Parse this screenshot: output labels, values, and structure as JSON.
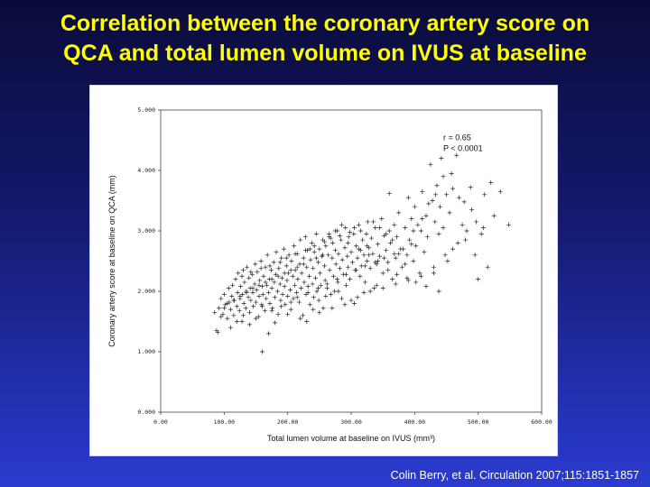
{
  "slide": {
    "title_line1": "Correlation between the coronary artery score on",
    "title_line2": "QCA and total lumen volume on IVUS at baseline",
    "citation": "Colin Berry, et al. Circulation 2007;115:1851-1857",
    "title_color": "#ffff00"
  },
  "chart_data": {
    "type": "scatter",
    "xlabel": "Total lumen volume at baseline on IVUS (mm³)",
    "ylabel": "Coronary artery score at baseline on QCA (mm)",
    "xlim": [
      0,
      600
    ],
    "ylim": [
      0,
      5
    ],
    "x_ticks": [
      "0.00",
      "100.00",
      "200.00",
      "300.00",
      "400.00",
      "500.00",
      "600.00"
    ],
    "y_ticks": [
      "0.000",
      "1.000",
      "2.000",
      "3.000",
      "4.000",
      "5.000"
    ],
    "annotations": [
      "r = 0.65",
      "P < 0.0001"
    ],
    "marker": "+",
    "grid": false,
    "points": [
      [
        85,
        1.65
      ],
      [
        88,
        1.35
      ],
      [
        92,
        1.72
      ],
      [
        95,
        1.88
      ],
      [
        98,
        1.62
      ],
      [
        100,
        1.95
      ],
      [
        102,
        1.78
      ],
      [
        105,
        1.55
      ],
      [
        107,
        2.05
      ],
      [
        108,
        1.82
      ],
      [
        110,
        1.7
      ],
      [
        112,
        1.92
      ],
      [
        113,
        2.1
      ],
      [
        115,
        1.6
      ],
      [
        116,
        1.85
      ],
      [
        118,
        2.2
      ],
      [
        120,
        1.75
      ],
      [
        121,
        1.98
      ],
      [
        122,
        2.3
      ],
      [
        124,
        1.68
      ],
      [
        125,
        1.88
      ],
      [
        126,
        2.08
      ],
      [
        128,
        1.5
      ],
      [
        129,
        1.95
      ],
      [
        130,
        2.35
      ],
      [
        131,
        1.8
      ],
      [
        132,
        2.15
      ],
      [
        134,
        1.72
      ],
      [
        135,
        2.0
      ],
      [
        136,
        2.4
      ],
      [
        138,
        1.9
      ],
      [
        139,
        2.22
      ],
      [
        140,
        1.65
      ],
      [
        141,
        2.05
      ],
      [
        142,
        1.85
      ],
      [
        144,
        2.28
      ],
      [
        145,
        1.98
      ],
      [
        146,
        1.75
      ],
      [
        148,
        2.12
      ],
      [
        149,
        2.45
      ],
      [
        150,
        1.82
      ],
      [
        151,
        2.02
      ],
      [
        152,
        2.32
      ],
      [
        154,
        1.58
      ],
      [
        155,
        1.92
      ],
      [
        156,
        2.18
      ],
      [
        158,
        2.5
      ],
      [
        159,
        1.78
      ],
      [
        160,
        2.08
      ],
      [
        161,
        1.95
      ],
      [
        162,
        2.25
      ],
      [
        164,
        1.68
      ],
      [
        165,
        2.4
      ],
      [
        166,
        1.88
      ],
      [
        167,
        2.1
      ],
      [
        168,
        2.6
      ],
      [
        170,
        1.98
      ],
      [
        171,
        2.2
      ],
      [
        172,
        1.8
      ],
      [
        174,
        2.35
      ],
      [
        175,
        2.05
      ],
      [
        176,
        1.72
      ],
      [
        178,
        2.48
      ],
      [
        179,
        2.15
      ],
      [
        180,
        1.9
      ],
      [
        181,
        2.28
      ],
      [
        182,
        2.65
      ],
      [
        184,
        2.0
      ],
      [
        185,
        1.62
      ],
      [
        186,
        2.38
      ],
      [
        188,
        2.12
      ],
      [
        189,
        1.85
      ],
      [
        190,
        2.55
      ],
      [
        191,
        2.22
      ],
      [
        192,
        1.95
      ],
      [
        194,
        2.7
      ],
      [
        195,
        2.08
      ],
      [
        196,
        1.78
      ],
      [
        198,
        2.42
      ],
      [
        199,
        2.18
      ],
      [
        200,
        1.92
      ],
      [
        201,
        2.3
      ],
      [
        202,
        2.6
      ],
      [
        204,
        2.02
      ],
      [
        205,
        1.7
      ],
      [
        206,
        2.5
      ],
      [
        208,
        2.25
      ],
      [
        209,
        1.88
      ],
      [
        210,
        2.75
      ],
      [
        211,
        2.1
      ],
      [
        212,
        2.35
      ],
      [
        214,
        1.98
      ],
      [
        215,
        2.62
      ],
      [
        216,
        2.2
      ],
      [
        218,
        1.82
      ],
      [
        219,
        2.45
      ],
      [
        220,
        2.85
      ],
      [
        221,
        2.05
      ],
      [
        222,
        2.3
      ],
      [
        224,
        1.6
      ],
      [
        225,
        2.55
      ],
      [
        226,
        2.15
      ],
      [
        228,
        2.9
      ],
      [
        229,
        1.95
      ],
      [
        230,
        2.4
      ],
      [
        231,
        2.68
      ],
      [
        232,
        2.08
      ],
      [
        234,
        2.25
      ],
      [
        235,
        1.78
      ],
      [
        236,
        2.52
      ],
      [
        238,
        2.8
      ],
      [
        239,
        2.12
      ],
      [
        240,
        2.38
      ],
      [
        241,
        1.9
      ],
      [
        242,
        2.65
      ],
      [
        244,
        2.22
      ],
      [
        245,
        2.95
      ],
      [
        246,
        2.0
      ],
      [
        248,
        2.48
      ],
      [
        249,
        1.85
      ],
      [
        250,
        2.7
      ],
      [
        251,
        2.3
      ],
      [
        252,
        2.1
      ],
      [
        254,
        2.58
      ],
      [
        255,
        2.85
      ],
      [
        256,
        1.72
      ],
      [
        258,
        2.42
      ],
      [
        259,
        2.18
      ],
      [
        260,
        2.75
      ],
      [
        262,
        2.05
      ],
      [
        264,
        2.6
      ],
      [
        265,
        2.9
      ],
      [
        266,
        2.35
      ],
      [
        268,
        1.95
      ],
      [
        270,
        2.55
      ],
      [
        271,
        2.8
      ],
      [
        272,
        2.25
      ],
      [
        274,
        2.0
      ],
      [
        275,
        2.68
      ],
      [
        276,
        2.45
      ],
      [
        278,
        3.0
      ],
      [
        279,
        2.15
      ],
      [
        280,
        2.62
      ],
      [
        282,
        2.38
      ],
      [
        284,
        2.85
      ],
      [
        285,
        1.88
      ],
      [
        286,
        2.52
      ],
      [
        288,
        2.28
      ],
      [
        290,
        2.72
      ],
      [
        291,
        3.05
      ],
      [
        292,
        2.1
      ],
      [
        294,
        2.58
      ],
      [
        295,
        2.4
      ],
      [
        296,
        2.9
      ],
      [
        298,
        2.2
      ],
      [
        300,
        2.65
      ],
      [
        302,
        2.48
      ],
      [
        304,
        2.95
      ],
      [
        305,
        1.8
      ],
      [
        306,
        2.35
      ],
      [
        308,
        2.75
      ],
      [
        310,
        2.55
      ],
      [
        312,
        3.1
      ],
      [
        314,
        2.25
      ],
      [
        315,
        2.68
      ],
      [
        316,
        2.42
      ],
      [
        318,
        2.85
      ],
      [
        320,
        2.6
      ],
      [
        322,
        2.15
      ],
      [
        324,
        2.95
      ],
      [
        325,
        2.5
      ],
      [
        326,
        3.15
      ],
      [
        328,
        2.72
      ],
      [
        330,
        2.38
      ],
      [
        332,
        2.88
      ],
      [
        334,
        2.62
      ],
      [
        336,
        2.05
      ],
      [
        338,
        3.05
      ],
      [
        340,
        2.45
      ],
      [
        342,
        2.78
      ],
      [
        345,
        2.58
      ],
      [
        348,
        3.2
      ],
      [
        350,
        2.3
      ],
      [
        352,
        2.92
      ],
      [
        355,
        2.68
      ],
      [
        358,
        2.48
      ],
      [
        360,
        3.0
      ],
      [
        362,
        2.8
      ],
      [
        365,
        2.2
      ],
      [
        368,
        3.1
      ],
      [
        370,
        2.55
      ],
      [
        372,
        2.9
      ],
      [
        375,
        3.3
      ],
      [
        378,
        2.7
      ],
      [
        380,
        2.4
      ],
      [
        385,
        3.05
      ],
      [
        388,
        2.6
      ],
      [
        390,
        3.55
      ],
      [
        392,
        2.85
      ],
      [
        395,
        3.2
      ],
      [
        398,
        2.5
      ],
      [
        400,
        3.4
      ],
      [
        402,
        2.75
      ],
      [
        405,
        3.1
      ],
      [
        408,
        2.3
      ],
      [
        410,
        3.0
      ],
      [
        412,
        3.65
      ],
      [
        415,
        2.65
      ],
      [
        418,
        3.25
      ],
      [
        420,
        2.9
      ],
      [
        425,
        4.1
      ],
      [
        428,
        3.5
      ],
      [
        430,
        2.4
      ],
      [
        432,
        3.15
      ],
      [
        435,
        3.75
      ],
      [
        438,
        2.95
      ],
      [
        440,
        3.4
      ],
      [
        442,
        4.2
      ],
      [
        445,
        3.05
      ],
      [
        448,
        2.6
      ],
      [
        450,
        3.6
      ],
      [
        455,
        3.3
      ],
      [
        460,
        3.7
      ],
      [
        470,
        3.55
      ],
      [
        480,
        2.85
      ],
      [
        490,
        3.35
      ],
      [
        500,
        2.2
      ],
      [
        510,
        3.6
      ],
      [
        520,
        3.8
      ],
      [
        535,
        3.65
      ],
      [
        548,
        3.1
      ],
      [
        360,
        3.62
      ],
      [
        340,
        2.1
      ],
      [
        320,
        1.98
      ],
      [
        300,
        1.85
      ],
      [
        280,
        2.0
      ],
      [
        260,
        1.92
      ],
      [
        240,
        1.7
      ],
      [
        220,
        1.55
      ],
      [
        200,
        1.62
      ],
      [
        180,
        1.48
      ],
      [
        170,
        1.3
      ],
      [
        160,
        1.0
      ],
      [
        150,
        1.55
      ],
      [
        140,
        1.45
      ],
      [
        130,
        1.6
      ],
      [
        120,
        1.5
      ],
      [
        110,
        1.4
      ],
      [
        95,
        1.58
      ],
      [
        90,
        1.32
      ],
      [
        230,
        1.5
      ],
      [
        250,
        1.65
      ],
      [
        270,
        1.72
      ],
      [
        290,
        1.78
      ],
      [
        310,
        1.9
      ],
      [
        330,
        2.0
      ],
      [
        350,
        2.05
      ],
      [
        370,
        2.12
      ],
      [
        390,
        2.18
      ],
      [
        410,
        2.25
      ],
      [
        430,
        2.3
      ],
      [
        460,
        2.7
      ],
      [
        475,
        3.1
      ],
      [
        505,
        2.95
      ],
      [
        515,
        2.4
      ],
      [
        395,
        2.78
      ],
      [
        385,
        2.45
      ],
      [
        375,
        2.62
      ],
      [
        365,
        2.85
      ],
      [
        355,
        2.95
      ],
      [
        345,
        3.05
      ],
      [
        335,
        3.15
      ],
      [
        325,
        2.75
      ],
      [
        315,
        3.0
      ],
      [
        305,
        3.05
      ],
      [
        295,
        2.8
      ],
      [
        285,
        3.1
      ],
      [
        275,
        3.0
      ],
      [
        265,
        2.95
      ],
      [
        255,
        2.6
      ],
      [
        245,
        2.55
      ],
      [
        235,
        2.7
      ],
      [
        225,
        2.45
      ],
      [
        215,
        2.4
      ],
      [
        205,
        2.35
      ],
      [
        195,
        2.3
      ],
      [
        185,
        2.25
      ],
      [
        175,
        2.2
      ],
      [
        165,
        2.15
      ],
      [
        155,
        2.1
      ],
      [
        145,
        2.05
      ],
      [
        135,
        1.98
      ],
      [
        125,
        1.92
      ],
      [
        115,
        1.85
      ],
      [
        105,
        1.8
      ],
      [
        100,
        1.72
      ],
      [
        128,
        2.25
      ],
      [
        142,
        2.32
      ],
      [
        158,
        2.38
      ],
      [
        172,
        2.42
      ],
      [
        188,
        2.48
      ],
      [
        198,
        2.55
      ],
      [
        212,
        2.62
      ],
      [
        228,
        2.68
      ],
      [
        242,
        2.75
      ],
      [
        258,
        2.82
      ],
      [
        268,
        2.88
      ],
      [
        282,
        2.92
      ],
      [
        298,
        2.98
      ],
      [
        312,
        2.7
      ],
      [
        328,
        2.6
      ],
      [
        342,
        2.5
      ],
      [
        358,
        2.35
      ],
      [
        372,
        2.28
      ],
      [
        388,
        2.22
      ],
      [
        402,
        2.15
      ],
      [
        418,
        2.08
      ],
      [
        438,
        2.0
      ],
      [
        452,
        2.5
      ],
      [
        468,
        2.8
      ],
      [
        482,
        3.0
      ],
      [
        495,
        2.6
      ],
      [
        525,
        3.25
      ],
      [
        160,
        1.75
      ],
      [
        175,
        1.68
      ],
      [
        190,
        1.75
      ],
      [
        205,
        1.82
      ],
      [
        215,
        1.9
      ],
      [
        232,
        1.98
      ],
      [
        248,
        2.05
      ],
      [
        262,
        2.12
      ],
      [
        278,
        2.2
      ],
      [
        292,
        2.28
      ],
      [
        308,
        2.35
      ],
      [
        322,
        2.42
      ],
      [
        338,
        2.48
      ],
      [
        352,
        2.55
      ],
      [
        368,
        2.62
      ],
      [
        382,
        2.7
      ],
      [
        398,
        3.0
      ],
      [
        412,
        3.2
      ],
      [
        422,
        3.45
      ],
      [
        433,
        3.6
      ],
      [
        445,
        3.9
      ],
      [
        458,
        3.95
      ],
      [
        466,
        4.25
      ],
      [
        478,
        3.48
      ],
      [
        488,
        3.72
      ],
      [
        497,
        3.15
      ],
      [
        508,
        3.05
      ]
    ]
  }
}
